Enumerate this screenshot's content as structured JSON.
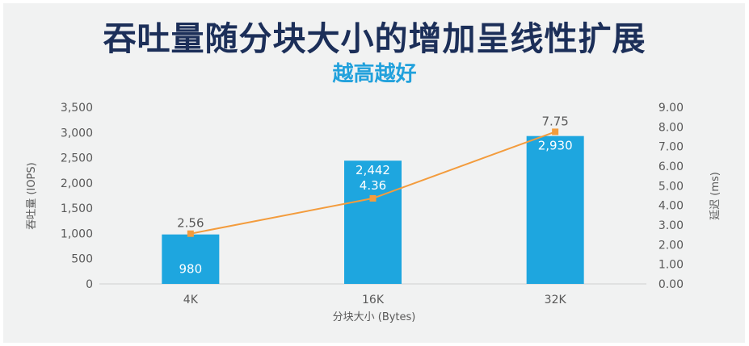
{
  "title": "吞吐量随分块大小的增加呈线性扩展",
  "subtitle": "越高越好",
  "chart_data": {
    "type": "bar",
    "categories": [
      "4K",
      "16K",
      "32K"
    ],
    "xlabel": "分块大小 (Bytes)",
    "ylabel": "吞吐量 (IOPS)",
    "y2label": "延迟 (ms)",
    "ylim": [
      0,
      3500
    ],
    "y2lim": [
      0,
      9
    ],
    "yticks": [
      "0",
      "500",
      "1,000",
      "1,500",
      "2,000",
      "2,500",
      "3,000",
      "3,500"
    ],
    "y2ticks": [
      "0.00",
      "1.00",
      "2.00",
      "3.00",
      "4.00",
      "5.00",
      "6.00",
      "7.00",
      "8.00",
      "9.00"
    ],
    "grid": false,
    "series": [
      {
        "type": "bar",
        "axis": "left",
        "values": [
          980,
          2442,
          2930
        ],
        "labels": [
          "980",
          "2,442",
          "2,930"
        ],
        "color": "#1ea6df"
      },
      {
        "type": "line",
        "axis": "right",
        "values": [
          2.56,
          4.36,
          7.75
        ],
        "labels": [
          "2.56",
          "4.36",
          "7.75"
        ],
        "color": "#f39c3d"
      }
    ]
  }
}
